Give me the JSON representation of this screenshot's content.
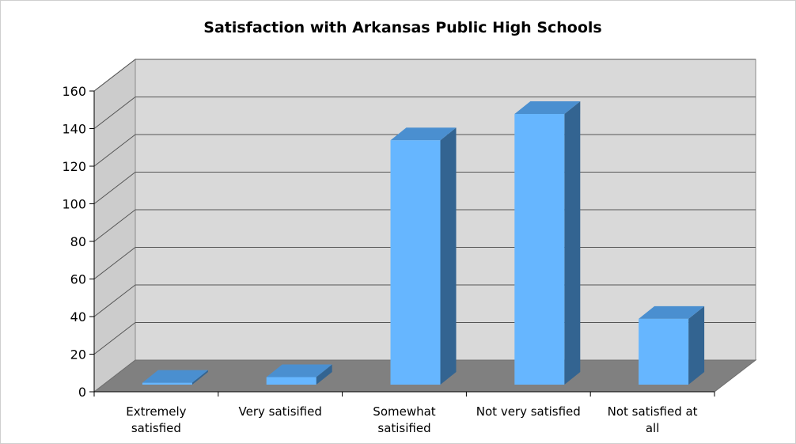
{
  "chart_data": {
    "type": "bar",
    "title": "Satisfaction with Arkansas Public High Schools",
    "xlabel": "",
    "ylabel": "",
    "categories": [
      [
        "Extremely",
        "satisfied"
      ],
      [
        "Very satisified"
      ],
      [
        "Somewhat",
        "satisified"
      ],
      [
        "Not very satisfied"
      ],
      [
        "Not satisfied at",
        "all"
      ]
    ],
    "values": [
      1,
      4,
      130,
      144,
      35
    ],
    "ylim": [
      0,
      160
    ],
    "yticks": [
      "0",
      "20",
      "40",
      "60",
      "80",
      "100",
      "120",
      "140",
      "160"
    ],
    "grid": true,
    "legend": "none",
    "colors": {
      "bar_front": "#66b6ff",
      "bar_top": "#4a8fd0",
      "bar_side": "#336491",
      "back_wall": "#d9d9d9",
      "side_wall": "#cccccc",
      "floor": "#808080",
      "grid": "#555555"
    }
  }
}
